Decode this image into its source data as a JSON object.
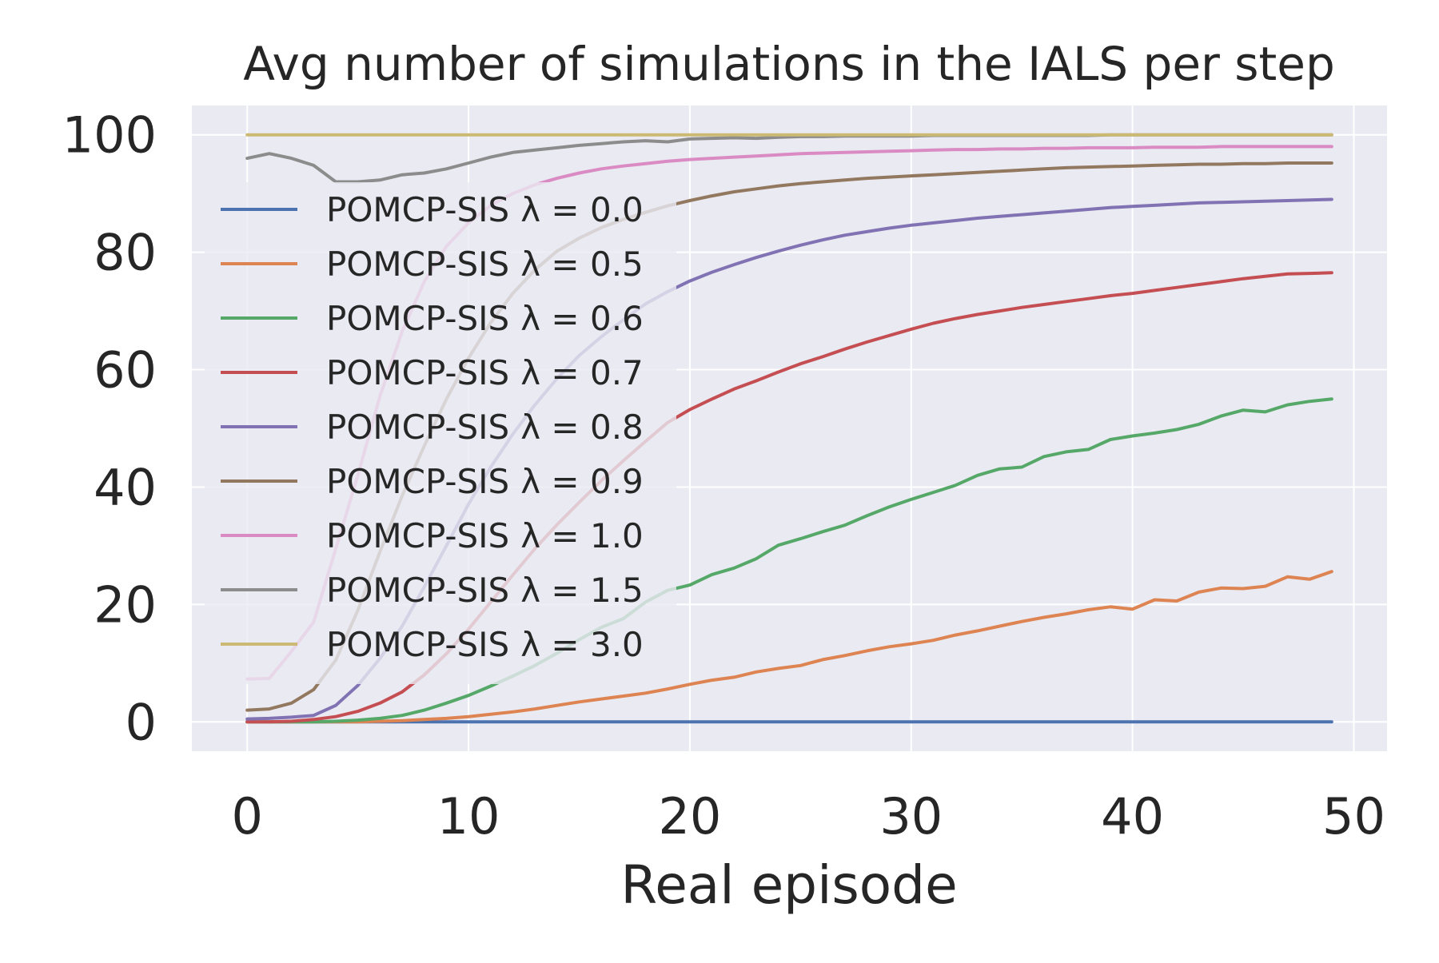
{
  "chart_data": {
    "type": "line",
    "title": "Avg number of simulations in the IALS per step",
    "xlabel": "Real episode",
    "ylabel": "",
    "xlim": [
      -2.5,
      51.5
    ],
    "ylim": [
      -5,
      105
    ],
    "xticks": [
      0,
      10,
      20,
      30,
      40,
      50
    ],
    "yticks": [
      0,
      20,
      40,
      60,
      80,
      100
    ],
    "xtick_labels": [
      "0",
      "10",
      "20",
      "30",
      "40",
      "50"
    ],
    "ytick_labels": [
      "0",
      "20",
      "40",
      "60",
      "80",
      "100"
    ],
    "grid": true,
    "legend_position": "upper-left",
    "x": [
      0,
      1,
      2,
      3,
      4,
      5,
      6,
      7,
      8,
      9,
      10,
      11,
      12,
      13,
      14,
      15,
      16,
      17,
      18,
      19,
      20,
      21,
      22,
      23,
      24,
      25,
      26,
      27,
      28,
      29,
      30,
      31,
      32,
      33,
      34,
      35,
      36,
      37,
      38,
      39,
      40,
      41,
      42,
      43,
      44,
      45,
      46,
      47,
      48,
      49
    ],
    "series": [
      {
        "name": "POMCP-SIS",
        "lambda_label": "λ = 0.0",
        "color": "#4c72b0",
        "values": [
          0,
          0,
          0,
          0,
          0,
          0,
          0,
          0,
          0,
          0,
          0,
          0,
          0,
          0,
          0,
          0,
          0,
          0,
          0,
          0,
          0,
          0,
          0,
          0,
          0,
          0,
          0,
          0,
          0,
          0,
          0,
          0,
          0,
          0,
          0,
          0,
          0,
          0,
          0,
          0,
          0,
          0,
          0,
          0,
          0,
          0,
          0,
          0,
          0,
          0
        ]
      },
      {
        "name": "POMCP-SIS",
        "lambda_label": "λ = 0.5",
        "color": "#dd8452",
        "values": [
          0,
          0,
          0,
          0,
          0,
          0,
          0.1,
          0.2,
          0.4,
          0.6,
          0.9,
          1.3,
          1.7,
          2.2,
          2.8,
          3.4,
          3.9,
          4.4,
          4.9,
          5.6,
          6.4,
          7.1,
          7.6,
          8.5,
          9.1,
          9.6,
          10.6,
          11.3,
          12.1,
          12.8,
          13.3,
          13.9,
          14.8,
          15.5,
          16.3,
          17.1,
          17.8,
          18.4,
          19.1,
          19.6,
          19.2,
          20.8,
          20.6,
          22.1,
          22.8,
          22.7,
          23.1,
          24.7,
          24.3,
          25.6
        ]
      },
      {
        "name": "POMCP-SIS",
        "lambda_label": "λ = 0.6",
        "color": "#55a868",
        "values": [
          0,
          0,
          0,
          0,
          0.1,
          0.3,
          0.6,
          1.1,
          2.0,
          3.2,
          4.5,
          6.1,
          7.8,
          9.6,
          11.7,
          14.0,
          16.1,
          17.6,
          20.4,
          22.4,
          23.3,
          25.1,
          26.2,
          27.8,
          30.1,
          31.2,
          32.4,
          33.5,
          35.1,
          36.6,
          37.9,
          39.1,
          40.3,
          42.0,
          43.1,
          43.4,
          45.2,
          46.0,
          46.4,
          48.1,
          48.7,
          49.2,
          49.8,
          50.7,
          52.1,
          53.1,
          52.8,
          54.0,
          54.6,
          55.0
        ]
      },
      {
        "name": "POMCP-SIS",
        "lambda_label": "λ = 0.7",
        "color": "#c44e52",
        "values": [
          0,
          0,
          0.1,
          0.4,
          0.9,
          1.8,
          3.2,
          5.1,
          8.0,
          11.6,
          15.8,
          20.4,
          25.0,
          29.5,
          33.6,
          37.4,
          41.1,
          44.5,
          47.8,
          51.0,
          53.2,
          55.0,
          56.7,
          58.1,
          59.6,
          61.0,
          62.2,
          63.5,
          64.7,
          65.8,
          66.9,
          67.9,
          68.7,
          69.4,
          70.0,
          70.6,
          71.1,
          71.6,
          72.1,
          72.6,
          73.0,
          73.5,
          74.0,
          74.5,
          75.0,
          75.5,
          75.9,
          76.3,
          76.4,
          76.5
        ]
      },
      {
        "name": "POMCP-SIS",
        "lambda_label": "λ = 0.8",
        "color": "#8172b3",
        "values": [
          0.5,
          0.6,
          0.8,
          1.1,
          2.8,
          6.2,
          10.8,
          16.3,
          23.0,
          30.0,
          37.1,
          43.4,
          49.0,
          54.0,
          58.5,
          62.4,
          65.6,
          68.5,
          71.2,
          73.3,
          75.1,
          76.6,
          77.9,
          79.1,
          80.2,
          81.2,
          82.1,
          82.9,
          83.5,
          84.1,
          84.6,
          85.0,
          85.4,
          85.8,
          86.1,
          86.4,
          86.7,
          87.0,
          87.3,
          87.6,
          87.8,
          88.0,
          88.2,
          88.4,
          88.5,
          88.6,
          88.7,
          88.8,
          88.9,
          89.0
        ]
      },
      {
        "name": "POMCP-SIS",
        "lambda_label": "λ = 0.9",
        "color": "#937860",
        "values": [
          2.0,
          2.2,
          3.2,
          5.5,
          10.5,
          19.0,
          29.0,
          38.5,
          47.0,
          55.0,
          62.0,
          68.0,
          73.0,
          77.0,
          80.2,
          82.4,
          84.2,
          85.6,
          86.8,
          87.9,
          88.8,
          89.6,
          90.3,
          90.8,
          91.3,
          91.7,
          92.0,
          92.3,
          92.6,
          92.8,
          93.0,
          93.2,
          93.4,
          93.6,
          93.8,
          94.0,
          94.2,
          94.4,
          94.5,
          94.6,
          94.7,
          94.8,
          94.9,
          95.0,
          95.0,
          95.1,
          95.1,
          95.2,
          95.2,
          95.2
        ]
      },
      {
        "name": "POMCP-SIS",
        "lambda_label": "λ = 1.0",
        "color": "#da8bc3",
        "values": [
          7.3,
          7.4,
          12.0,
          17.0,
          29.5,
          42.0,
          55.5,
          66.5,
          75.0,
          81.0,
          85.0,
          88.0,
          90.0,
          91.5,
          92.6,
          93.5,
          94.2,
          94.7,
          95.1,
          95.5,
          95.8,
          96.0,
          96.2,
          96.4,
          96.6,
          96.8,
          96.9,
          97.0,
          97.1,
          97.2,
          97.3,
          97.4,
          97.5,
          97.5,
          97.6,
          97.6,
          97.7,
          97.7,
          97.8,
          97.8,
          97.8,
          97.9,
          97.9,
          97.9,
          98.0,
          98.0,
          98.0,
          98.0,
          98.0,
          98.0
        ]
      },
      {
        "name": "POMCP-SIS",
        "lambda_label": "λ = 1.5",
        "color": "#8c8c8c",
        "values": [
          96.0,
          96.8,
          96.0,
          94.8,
          92.0,
          92.0,
          92.3,
          93.2,
          93.5,
          94.2,
          95.2,
          96.2,
          97.0,
          97.4,
          97.8,
          98.2,
          98.5,
          98.8,
          99.0,
          98.8,
          99.3,
          99.4,
          99.5,
          99.4,
          99.6,
          99.7,
          99.7,
          99.8,
          99.8,
          99.8,
          99.8,
          99.9,
          99.9,
          99.9,
          99.9,
          99.9,
          99.9,
          99.9,
          99.9,
          100,
          100,
          100,
          100,
          100,
          100,
          100,
          100,
          100,
          100,
          100
        ]
      },
      {
        "name": "POMCP-SIS",
        "lambda_label": "λ = 3.0",
        "color": "#ccb974",
        "values": [
          100,
          100,
          100,
          100,
          100,
          100,
          100,
          100,
          100,
          100,
          100,
          100,
          100,
          100,
          100,
          100,
          100,
          100,
          100,
          100,
          100,
          100,
          100,
          100,
          100,
          100,
          100,
          100,
          100,
          100,
          100,
          100,
          100,
          100,
          100,
          100,
          100,
          100,
          100,
          100,
          100,
          100,
          100,
          100,
          100,
          100,
          100,
          100,
          100,
          100
        ]
      }
    ]
  }
}
